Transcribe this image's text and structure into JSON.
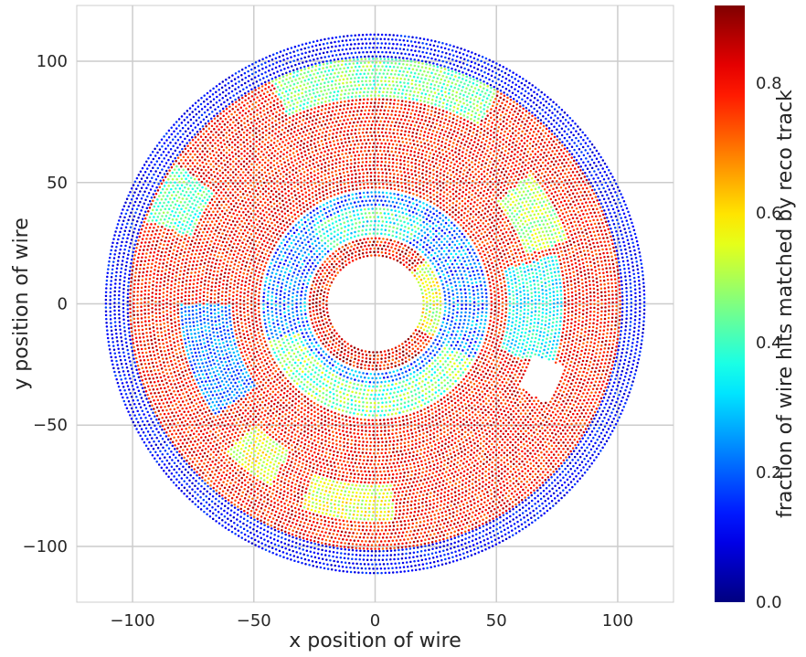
{
  "chart_data": {
    "type": "scatter",
    "title": "",
    "xlabel": "x position of wire",
    "ylabel": "y position of wire",
    "xlim": [
      -123,
      123
    ],
    "ylim": [
      -123,
      123
    ],
    "x_ticks": [
      -100,
      -50,
      0,
      50,
      100
    ],
    "y_ticks": [
      -100,
      -50,
      0,
      50,
      100
    ],
    "x_tick_labels": [
      "−100",
      "−50",
      "0",
      "50",
      "100"
    ],
    "y_tick_labels": [
      "−100",
      "−50",
      "0",
      "50",
      "100"
    ],
    "grid": true,
    "colormap": "jet",
    "colorbar": {
      "label": "fraction of wire hits matched by reco track",
      "range": [
        0.0,
        0.92
      ],
      "ticks": [
        0.0,
        0.2,
        0.4,
        0.6,
        0.8
      ],
      "tick_labels": [
        "0.0",
        "0.2",
        "0.4",
        "0.6",
        "0.8"
      ]
    },
    "layers": [
      {
        "r_min": 20,
        "r_max": 27,
        "n_rings": 6,
        "value": 0.82,
        "noise": 0.12
      },
      {
        "r_min": 29,
        "r_max": 46,
        "n_rings": 11,
        "value": 0.22,
        "noise": 0.12
      },
      {
        "r_min": 48,
        "r_max": 101,
        "n_rings": 36,
        "value": 0.8,
        "noise": 0.09
      },
      {
        "r_min": 102,
        "r_max": 111,
        "n_rings": 6,
        "value": 0.12,
        "noise": 0.06
      }
    ],
    "regions": [
      {
        "r_min": 20,
        "r_max": 27,
        "angle_min": 330,
        "angle_max": 40,
        "value": 0.55
      },
      {
        "r_min": 33,
        "r_max": 46,
        "angle_min": 200,
        "angle_max": 330,
        "value": 0.45
      },
      {
        "r_min": 29,
        "r_max": 40,
        "angle_min": 60,
        "angle_max": 130,
        "value": 0.38
      },
      {
        "r_min": 60,
        "r_max": 80,
        "angle_min": 180,
        "angle_max": 215,
        "value": 0.22
      },
      {
        "r_min": 55,
        "r_max": 78,
        "angle_min": 340,
        "angle_max": 15,
        "value": 0.35
      },
      {
        "r_min": 85,
        "r_max": 101,
        "angle_min": 60,
        "angle_max": 115,
        "value": 0.45
      },
      {
        "r_min": 80,
        "r_max": 100,
        "angle_min": 145,
        "angle_max": 160,
        "value": 0.42
      },
      {
        "r_min": 75,
        "r_max": 90,
        "angle_min": 250,
        "angle_max": 275,
        "value": 0.55
      },
      {
        "r_min": 66,
        "r_max": 84,
        "angle_min": 18,
        "angle_max": 40,
        "value": 0.5
      },
      {
        "r_min": 70,
        "r_max": 86,
        "angle_min": 225,
        "angle_max": 240,
        "value": 0.55
      }
    ],
    "gaps": [
      {
        "r_min": 68,
        "r_max": 82,
        "angle_min": 330,
        "angle_max": 342
      }
    ]
  }
}
